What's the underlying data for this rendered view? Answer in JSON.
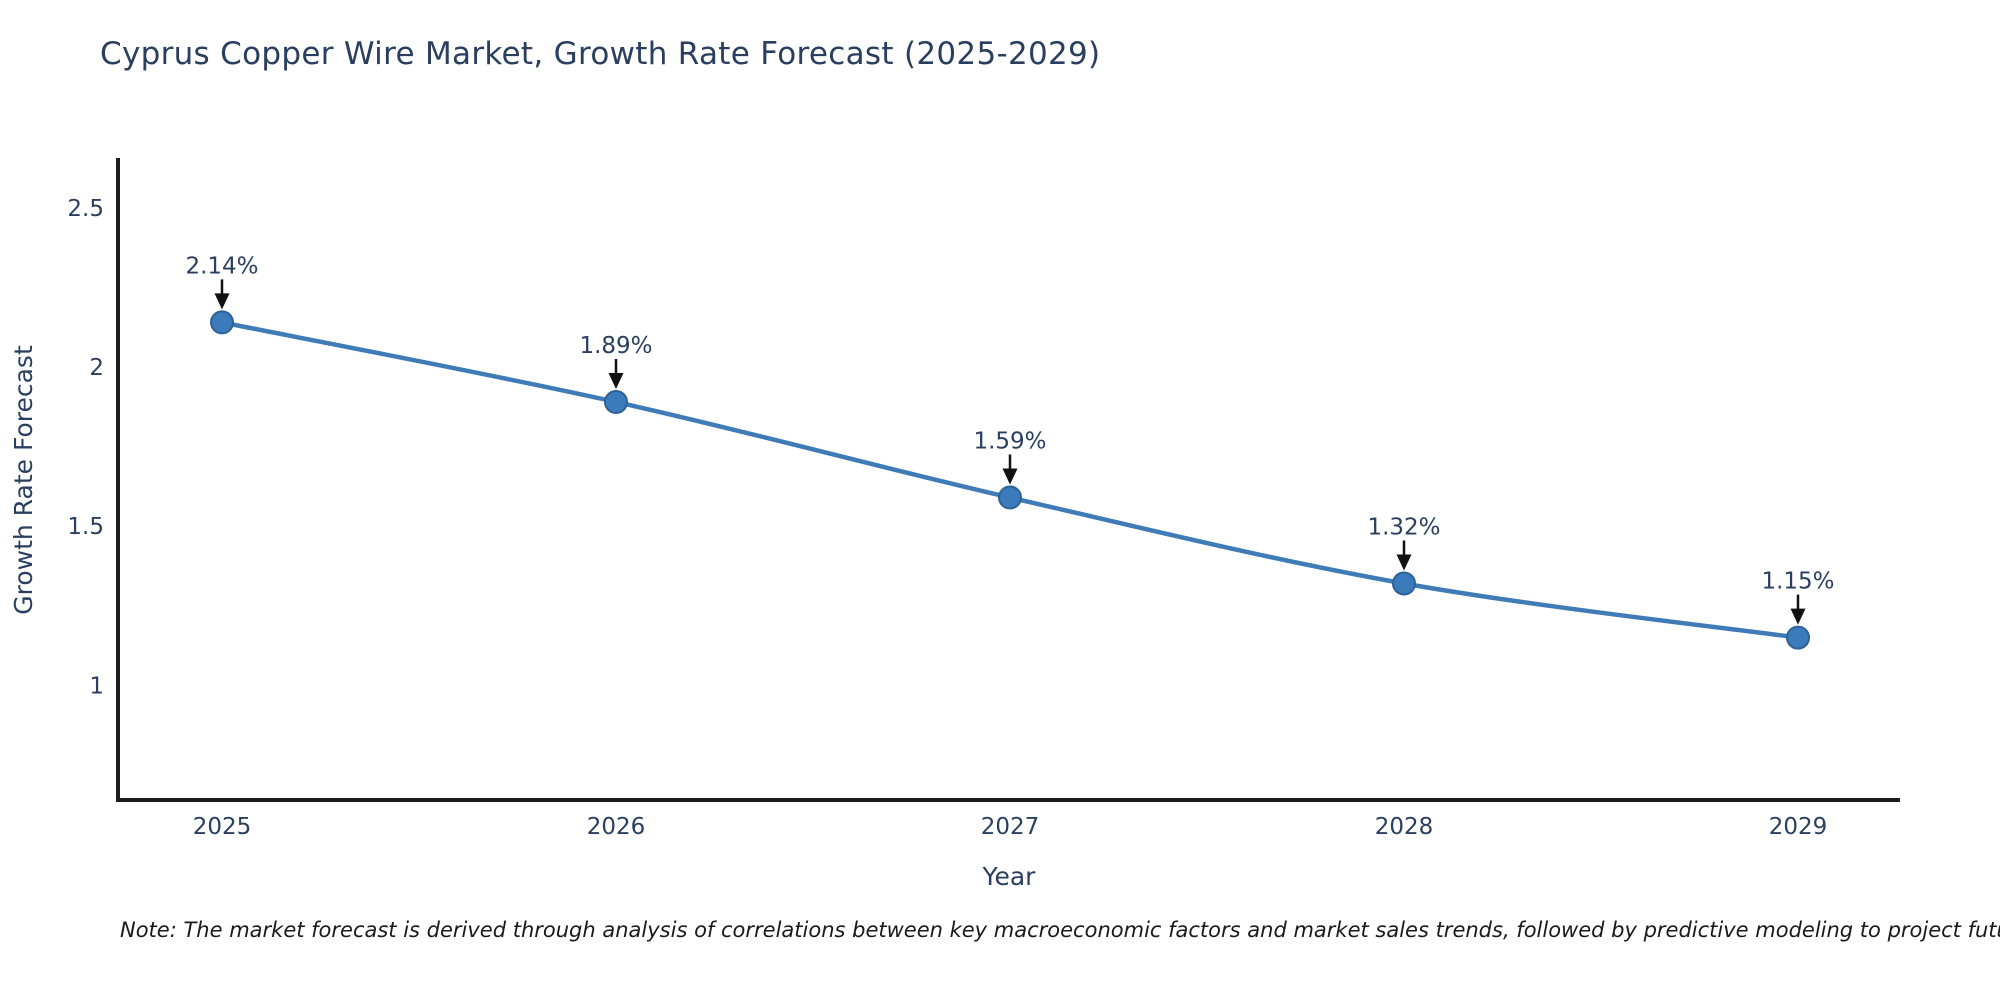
{
  "page": {
    "title": "Cyprus Copper Wire Market, Growth Rate Forecast (2025-2029)",
    "note": "Note: The market forecast is derived through analysis of correlations between key macroeconomic factors and market sales trends, followed by predictive modeling to project future sales"
  },
  "chart_data": {
    "type": "line",
    "title": "Cyprus Copper Wire Market, Growth Rate Forecast (2025-2029)",
    "xlabel": "Year",
    "ylabel": "Growth Rate Forecast",
    "categories": [
      "2025",
      "2026",
      "2027",
      "2028",
      "2029"
    ],
    "values": [
      2.14,
      1.89,
      1.59,
      1.32,
      1.15
    ],
    "point_labels": [
      "2.14%",
      "1.89%",
      "1.59%",
      "1.32%",
      "1.15%"
    ],
    "y_ticks": [
      1,
      1.5,
      2,
      2.5
    ],
    "y_tick_labels": [
      "1",
      "1.5",
      "2",
      "2.5"
    ],
    "ylim": [
      0.64,
      2.65
    ],
    "grid": false,
    "legend": false,
    "marker": "circle",
    "annotation_style": "value label above each point with black down-arrow",
    "colors": {
      "line": "#3f7bb6",
      "marker_fill": "#3b7bbc",
      "marker_stroke": "#2d6298",
      "text": "#2a3f5f",
      "axis": "#1c1c1d",
      "arrow": "#111111",
      "note_text": "#1a1a1a",
      "background": "#ffffff"
    }
  }
}
